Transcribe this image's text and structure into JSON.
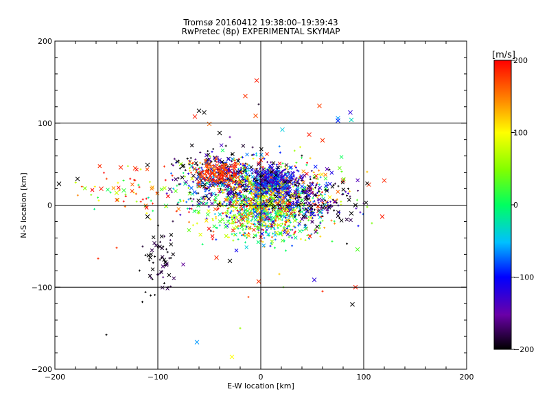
{
  "chart_data": {
    "type": "scatter",
    "title": "Tromsø 20160412 19:38:00–19:39:43",
    "subtitle": "RwPretec (8p) EXPERIMENTAL SKYMAP",
    "xlabel": "E-W location [km]",
    "ylabel": "N-S location [km]",
    "xlim": [
      -200,
      200
    ],
    "ylim": [
      -200,
      200
    ],
    "xticks": [
      -200,
      -100,
      0,
      100,
      200
    ],
    "yticks": [
      -200,
      -100,
      0,
      100,
      200
    ],
    "grid": true,
    "colorbar": {
      "label": "[m/s]",
      "min": -200,
      "max": 200,
      "ticks": [
        200,
        100,
        0,
        -100,
        -200
      ]
    },
    "marker_note": "markers: x crosses and small plus signs, colored by velocity",
    "points": [
      {
        "x": -4,
        "y": 152,
        "v": 190,
        "m": "x"
      },
      {
        "x": -15,
        "y": 133,
        "v": 180,
        "m": "x"
      },
      {
        "x": 57,
        "y": 121,
        "v": 175,
        "m": "x"
      },
      {
        "x": 87,
        "y": 113,
        "v": -120,
        "m": "x"
      },
      {
        "x": 75,
        "y": 106,
        "v": -60,
        "m": "x"
      },
      {
        "x": 75,
        "y": 103,
        "v": -90,
        "m": "x"
      },
      {
        "x": 88,
        "y": 104,
        "v": -30,
        "m": "x"
      },
      {
        "x": -60,
        "y": 115,
        "v": -200,
        "m": "x"
      },
      {
        "x": -55,
        "y": 113,
        "v": -200,
        "m": "x"
      },
      {
        "x": -64,
        "y": 108,
        "v": 190,
        "m": "x"
      },
      {
        "x": -5,
        "y": 109,
        "v": 170,
        "m": "x"
      },
      {
        "x": -2,
        "y": 123,
        "v": -190,
        "m": "+"
      },
      {
        "x": -40,
        "y": 88,
        "v": -200,
        "m": "x"
      },
      {
        "x": -50,
        "y": 99,
        "v": 160,
        "m": "x"
      },
      {
        "x": 21,
        "y": 92,
        "v": -40,
        "m": "x"
      },
      {
        "x": 47,
        "y": 86,
        "v": 190,
        "m": "x"
      },
      {
        "x": 60,
        "y": 79,
        "v": 180,
        "m": "x"
      },
      {
        "x": -30,
        "y": 83,
        "v": -150,
        "m": "+"
      },
      {
        "x": -140,
        "y": 15,
        "v": 80,
        "m": "x"
      },
      {
        "x": -136,
        "y": 46,
        "v": 185,
        "m": "x"
      },
      {
        "x": -110,
        "y": 49,
        "v": -200,
        "m": "x"
      },
      {
        "x": -122,
        "y": 45,
        "v": 175,
        "m": "x"
      },
      {
        "x": -155,
        "y": 20,
        "v": 190,
        "m": "x"
      },
      {
        "x": -178,
        "y": 32,
        "v": -200,
        "m": "x"
      },
      {
        "x": -196,
        "y": 26,
        "v": -200,
        "m": "x"
      },
      {
        "x": -133,
        "y": 18,
        "v": 20,
        "m": "x"
      },
      {
        "x": -92,
        "y": -1,
        "v": 10,
        "m": "x"
      },
      {
        "x": -110,
        "y": -14,
        "v": -200,
        "m": "x"
      },
      {
        "x": 120,
        "y": 30,
        "v": 185,
        "m": "x"
      },
      {
        "x": 118,
        "y": -14,
        "v": 190,
        "m": "x"
      },
      {
        "x": 92,
        "y": 0,
        "v": -200,
        "m": "x"
      },
      {
        "x": 88,
        "y": -10,
        "v": -200,
        "m": "x"
      },
      {
        "x": 94,
        "y": -54,
        "v": 30,
        "m": "x"
      },
      {
        "x": 52,
        "y": -91,
        "v": -120,
        "m": "x"
      },
      {
        "x": 92,
        "y": -100,
        "v": 190,
        "m": "x"
      },
      {
        "x": 89,
        "y": -121,
        "v": -200,
        "m": "x"
      },
      {
        "x": -2,
        "y": -93,
        "v": 180,
        "m": "x"
      },
      {
        "x": -30,
        "y": -68,
        "v": -200,
        "m": "x"
      },
      {
        "x": -43,
        "y": -64,
        "v": 185,
        "m": "x"
      },
      {
        "x": -62,
        "y": -167,
        "v": -60,
        "m": "x"
      },
      {
        "x": -28,
        "y": -185,
        "v": 100,
        "m": "x"
      },
      {
        "x": -150,
        "y": -158,
        "v": -200,
        "m": "+"
      },
      {
        "x": -112,
        "y": -106,
        "v": -200,
        "m": "+"
      },
      {
        "x": -107,
        "y": -110,
        "v": -200,
        "m": "+"
      },
      {
        "x": -115,
        "y": -118,
        "v": -200,
        "m": "+"
      },
      {
        "x": -90,
        "y": -100,
        "v": -200,
        "m": "+"
      },
      {
        "x": -158,
        "y": -65,
        "v": 185,
        "m": "+"
      },
      {
        "x": -140,
        "y": -52,
        "v": 180,
        "m": "+"
      },
      {
        "x": -12,
        "y": -112,
        "v": 175,
        "m": "+"
      },
      {
        "x": 22,
        "y": -100,
        "v": 40,
        "m": "+"
      },
      {
        "x": 60,
        "y": -105,
        "v": 185,
        "m": "+"
      },
      {
        "x": 18,
        "y": -84,
        "v": 120,
        "m": "+"
      },
      {
        "x": -20,
        "y": -150,
        "v": 60,
        "m": "+"
      },
      {
        "x": -105,
        "y": 2,
        "v": 185,
        "m": "+"
      },
      {
        "x": -118,
        "y": 22,
        "v": 185,
        "m": "+"
      },
      {
        "x": 105,
        "y": 25,
        "v": 180,
        "m": "x"
      },
      {
        "x": 80,
        "y": 30,
        "v": 190,
        "m": "x"
      },
      {
        "x": 85,
        "y": 20,
        "v": -200,
        "m": "+"
      },
      {
        "x": 72,
        "y": 5,
        "v": 175,
        "m": "x"
      }
    ]
  }
}
